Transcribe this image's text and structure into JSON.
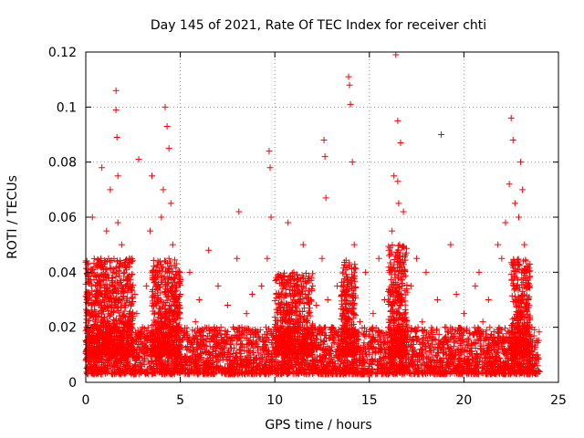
{
  "chart_data": {
    "type": "scatter",
    "title": "Day 145 of 2021, Rate Of TEC Index for receiver chti",
    "xlabel": "GPS time / hours",
    "ylabel": "ROTI / TECUs",
    "xlim": [
      0,
      25
    ],
    "ylim": [
      0,
      0.12
    ],
    "xticks": [
      0,
      5,
      10,
      15,
      20,
      25
    ],
    "xtick_labels": [
      "0",
      "5",
      "10",
      "15",
      "20",
      "25"
    ],
    "yticks": [
      0,
      0.02,
      0.04,
      0.06,
      0.08,
      0.1,
      0.12
    ],
    "ytick_labels": [
      "0",
      "0.02",
      "0.04",
      "0.06",
      "0.08",
      "0.1",
      "0.12"
    ],
    "grid": true,
    "marker": "plus",
    "color": "#ff0000",
    "series": [
      {
        "x": [
          0.1,
          0.2,
          0.3,
          0.35,
          0.4,
          0.6,
          0.7,
          0.8,
          0.85,
          0.9,
          1.0,
          1.1,
          1.2,
          1.3,
          1.4,
          1.5,
          1.6,
          1.6,
          1.65,
          1.7,
          1.7,
          1.75,
          1.8,
          1.9,
          2.0,
          2.1,
          2.2,
          2.3,
          2.5,
          2.6,
          2.7,
          2.8,
          3.0,
          3.2,
          3.4,
          3.5,
          3.6,
          3.8,
          3.9,
          4.0,
          4.1,
          4.2,
          4.3,
          4.4,
          4.4,
          4.5,
          4.5,
          4.55,
          4.6,
          4.7,
          4.8,
          5.0,
          5.2,
          5.5,
          5.8,
          6.0,
          6.2,
          6.5,
          6.8,
          7.0,
          7.2,
          7.5,
          7.8,
          8.0,
          8.1,
          8.2,
          8.5,
          8.8,
          9.0,
          9.3,
          9.6,
          9.7,
          9.75,
          9.8,
          10.0,
          10.2,
          10.5,
          10.7,
          10.9,
          11.0,
          11.2,
          11.5,
          11.8,
          12.0,
          12.2,
          12.5,
          12.6,
          12.65,
          12.7,
          12.8,
          13.0,
          13.3,
          13.5,
          13.8,
          13.9,
          13.95,
          14.0,
          14.1,
          14.2,
          14.5,
          14.8,
          15.0,
          15.2,
          15.5,
          15.8,
          16.0,
          16.2,
          16.3,
          16.4,
          16.5,
          16.5,
          16.55,
          16.6,
          16.65,
          16.7,
          16.8,
          17.0,
          17.2,
          17.5,
          17.8,
          18.0,
          18.3,
          18.6,
          18.8,
          19.0,
          19.3,
          19.6,
          19.8,
          20.0,
          20.3,
          20.6,
          20.8,
          21.0,
          21.3,
          21.6,
          21.8,
          22.0,
          22.2,
          22.4,
          22.5,
          22.6,
          22.7,
          22.8,
          22.9,
          23.0,
          23.1,
          23.2,
          23.4,
          23.6,
          23.8,
          23.9
        ],
        "y": [
          0.012,
          0.025,
          0.015,
          0.06,
          0.02,
          0.035,
          0.028,
          0.045,
          0.078,
          0.018,
          0.032,
          0.055,
          0.022,
          0.07,
          0.015,
          0.04,
          0.106,
          0.099,
          0.089,
          0.075,
          0.058,
          0.03,
          0.012,
          0.05,
          0.02,
          0.028,
          0.015,
          0.045,
          0.012,
          0.032,
          0.025,
          0.081,
          0.02,
          0.035,
          0.055,
          0.075,
          0.015,
          0.04,
          0.025,
          0.06,
          0.07,
          0.1,
          0.093,
          0.045,
          0.085,
          0.065,
          0.022,
          0.012,
          0.05,
          0.028,
          0.015,
          0.032,
          0.018,
          0.04,
          0.022,
          0.03,
          0.015,
          0.048,
          0.02,
          0.035,
          0.012,
          0.028,
          0.02,
          0.045,
          0.062,
          0.015,
          0.025,
          0.032,
          0.018,
          0.035,
          0.045,
          0.084,
          0.078,
          0.06,
          0.02,
          0.032,
          0.015,
          0.058,
          0.025,
          0.04,
          0.022,
          0.05,
          0.018,
          0.035,
          0.028,
          0.045,
          0.088,
          0.082,
          0.067,
          0.03,
          0.02,
          0.035,
          0.015,
          0.032,
          0.111,
          0.108,
          0.101,
          0.08,
          0.05,
          0.022,
          0.04,
          0.012,
          0.025,
          0.045,
          0.03,
          0.02,
          0.055,
          0.075,
          0.119,
          0.095,
          0.073,
          0.065,
          0.05,
          0.087,
          0.03,
          0.062,
          0.02,
          0.035,
          0.045,
          0.022,
          0.04,
          0.015,
          0.03,
          0.09,
          0.02,
          0.05,
          0.032,
          0.015,
          0.025,
          0.018,
          0.035,
          0.04,
          0.022,
          0.03,
          0.015,
          0.05,
          0.045,
          0.058,
          0.072,
          0.096,
          0.088,
          0.065,
          0.035,
          0.06,
          0.08,
          0.07,
          0.05,
          0.03,
          0.02,
          0.015,
          0.01
        ]
      }
    ],
    "dense_band": [
      {
        "x0": 0.0,
        "x1": 24.0,
        "ymin": 0.003,
        "ymax": 0.02
      },
      {
        "x0": 0.0,
        "x1": 2.5,
        "ymin": 0.01,
        "ymax": 0.045
      },
      {
        "x0": 3.5,
        "x1": 5.0,
        "ymin": 0.01,
        "ymax": 0.045
      },
      {
        "x0": 10.0,
        "x1": 12.0,
        "ymin": 0.01,
        "ymax": 0.04
      },
      {
        "x0": 13.5,
        "x1": 14.3,
        "ymin": 0.01,
        "ymax": 0.045
      },
      {
        "x0": 16.0,
        "x1": 17.0,
        "ymin": 0.01,
        "ymax": 0.05
      },
      {
        "x0": 22.5,
        "x1": 23.5,
        "ymin": 0.01,
        "ymax": 0.045
      }
    ]
  }
}
